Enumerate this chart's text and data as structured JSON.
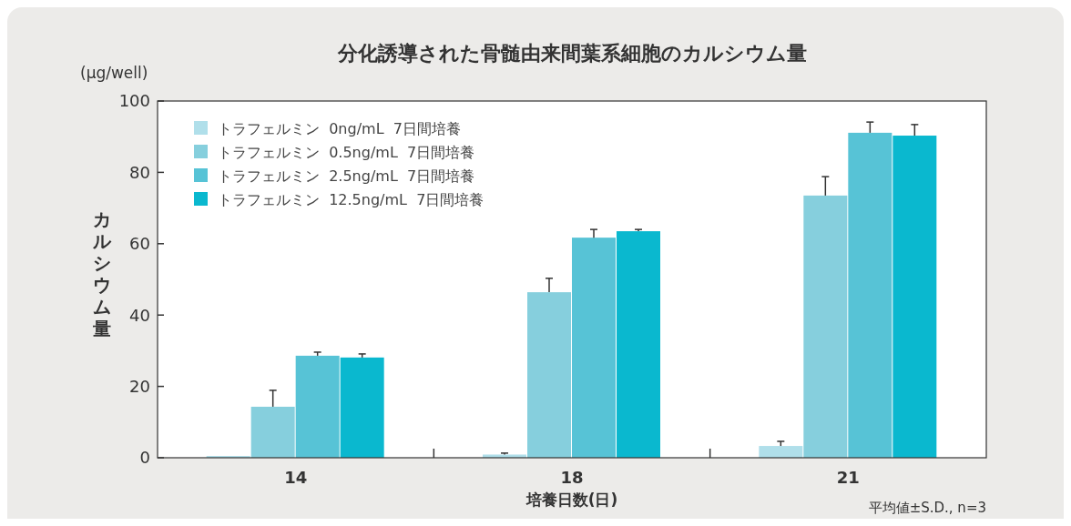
{
  "chart_data": {
    "type": "bar",
    "title": "分化誘導された骨髄由来間葉系細胞のカルシウム量",
    "xlabel": "培養日数(日)",
    "ylabel": "カルシウム量",
    "annotations": [
      "(μg/well)",
      "平均値±S.D., n=3"
    ],
    "categories": [
      "14",
      "18",
      "21"
    ],
    "series": [
      {
        "name": "トラフェルミン 0ng/mL 7日間培養",
        "color": "#b0dfea",
        "values": [
          0.5,
          0.9,
          3.3
        ],
        "errors": [
          null,
          0.4,
          1.3
        ]
      },
      {
        "name": "トラフェルミン 0.5ng/mL 7日間培養",
        "color": "#86cfdd",
        "values": [
          14.3,
          46.4,
          73.5
        ],
        "errors": [
          4.6,
          3.9,
          5.3
        ]
      },
      {
        "name": "トラフェルミン 2.5ng/mL 7日間培養",
        "color": "#57c3d6",
        "values": [
          28.6,
          61.7,
          91.1
        ],
        "errors": [
          1.0,
          2.3,
          3.0
        ]
      },
      {
        "name": "トラフェルミン 12.5ng/mL 7日間培養",
        "color": "#0ab8cf",
        "values": [
          28.1,
          63.5,
          90.3
        ],
        "errors": [
          1.0,
          0.5,
          3.1
        ]
      }
    ],
    "ylim": [
      0,
      100
    ],
    "yticks": [
      0,
      20,
      40,
      60,
      80,
      100
    ],
    "legend": "top left",
    "grid": false
  }
}
